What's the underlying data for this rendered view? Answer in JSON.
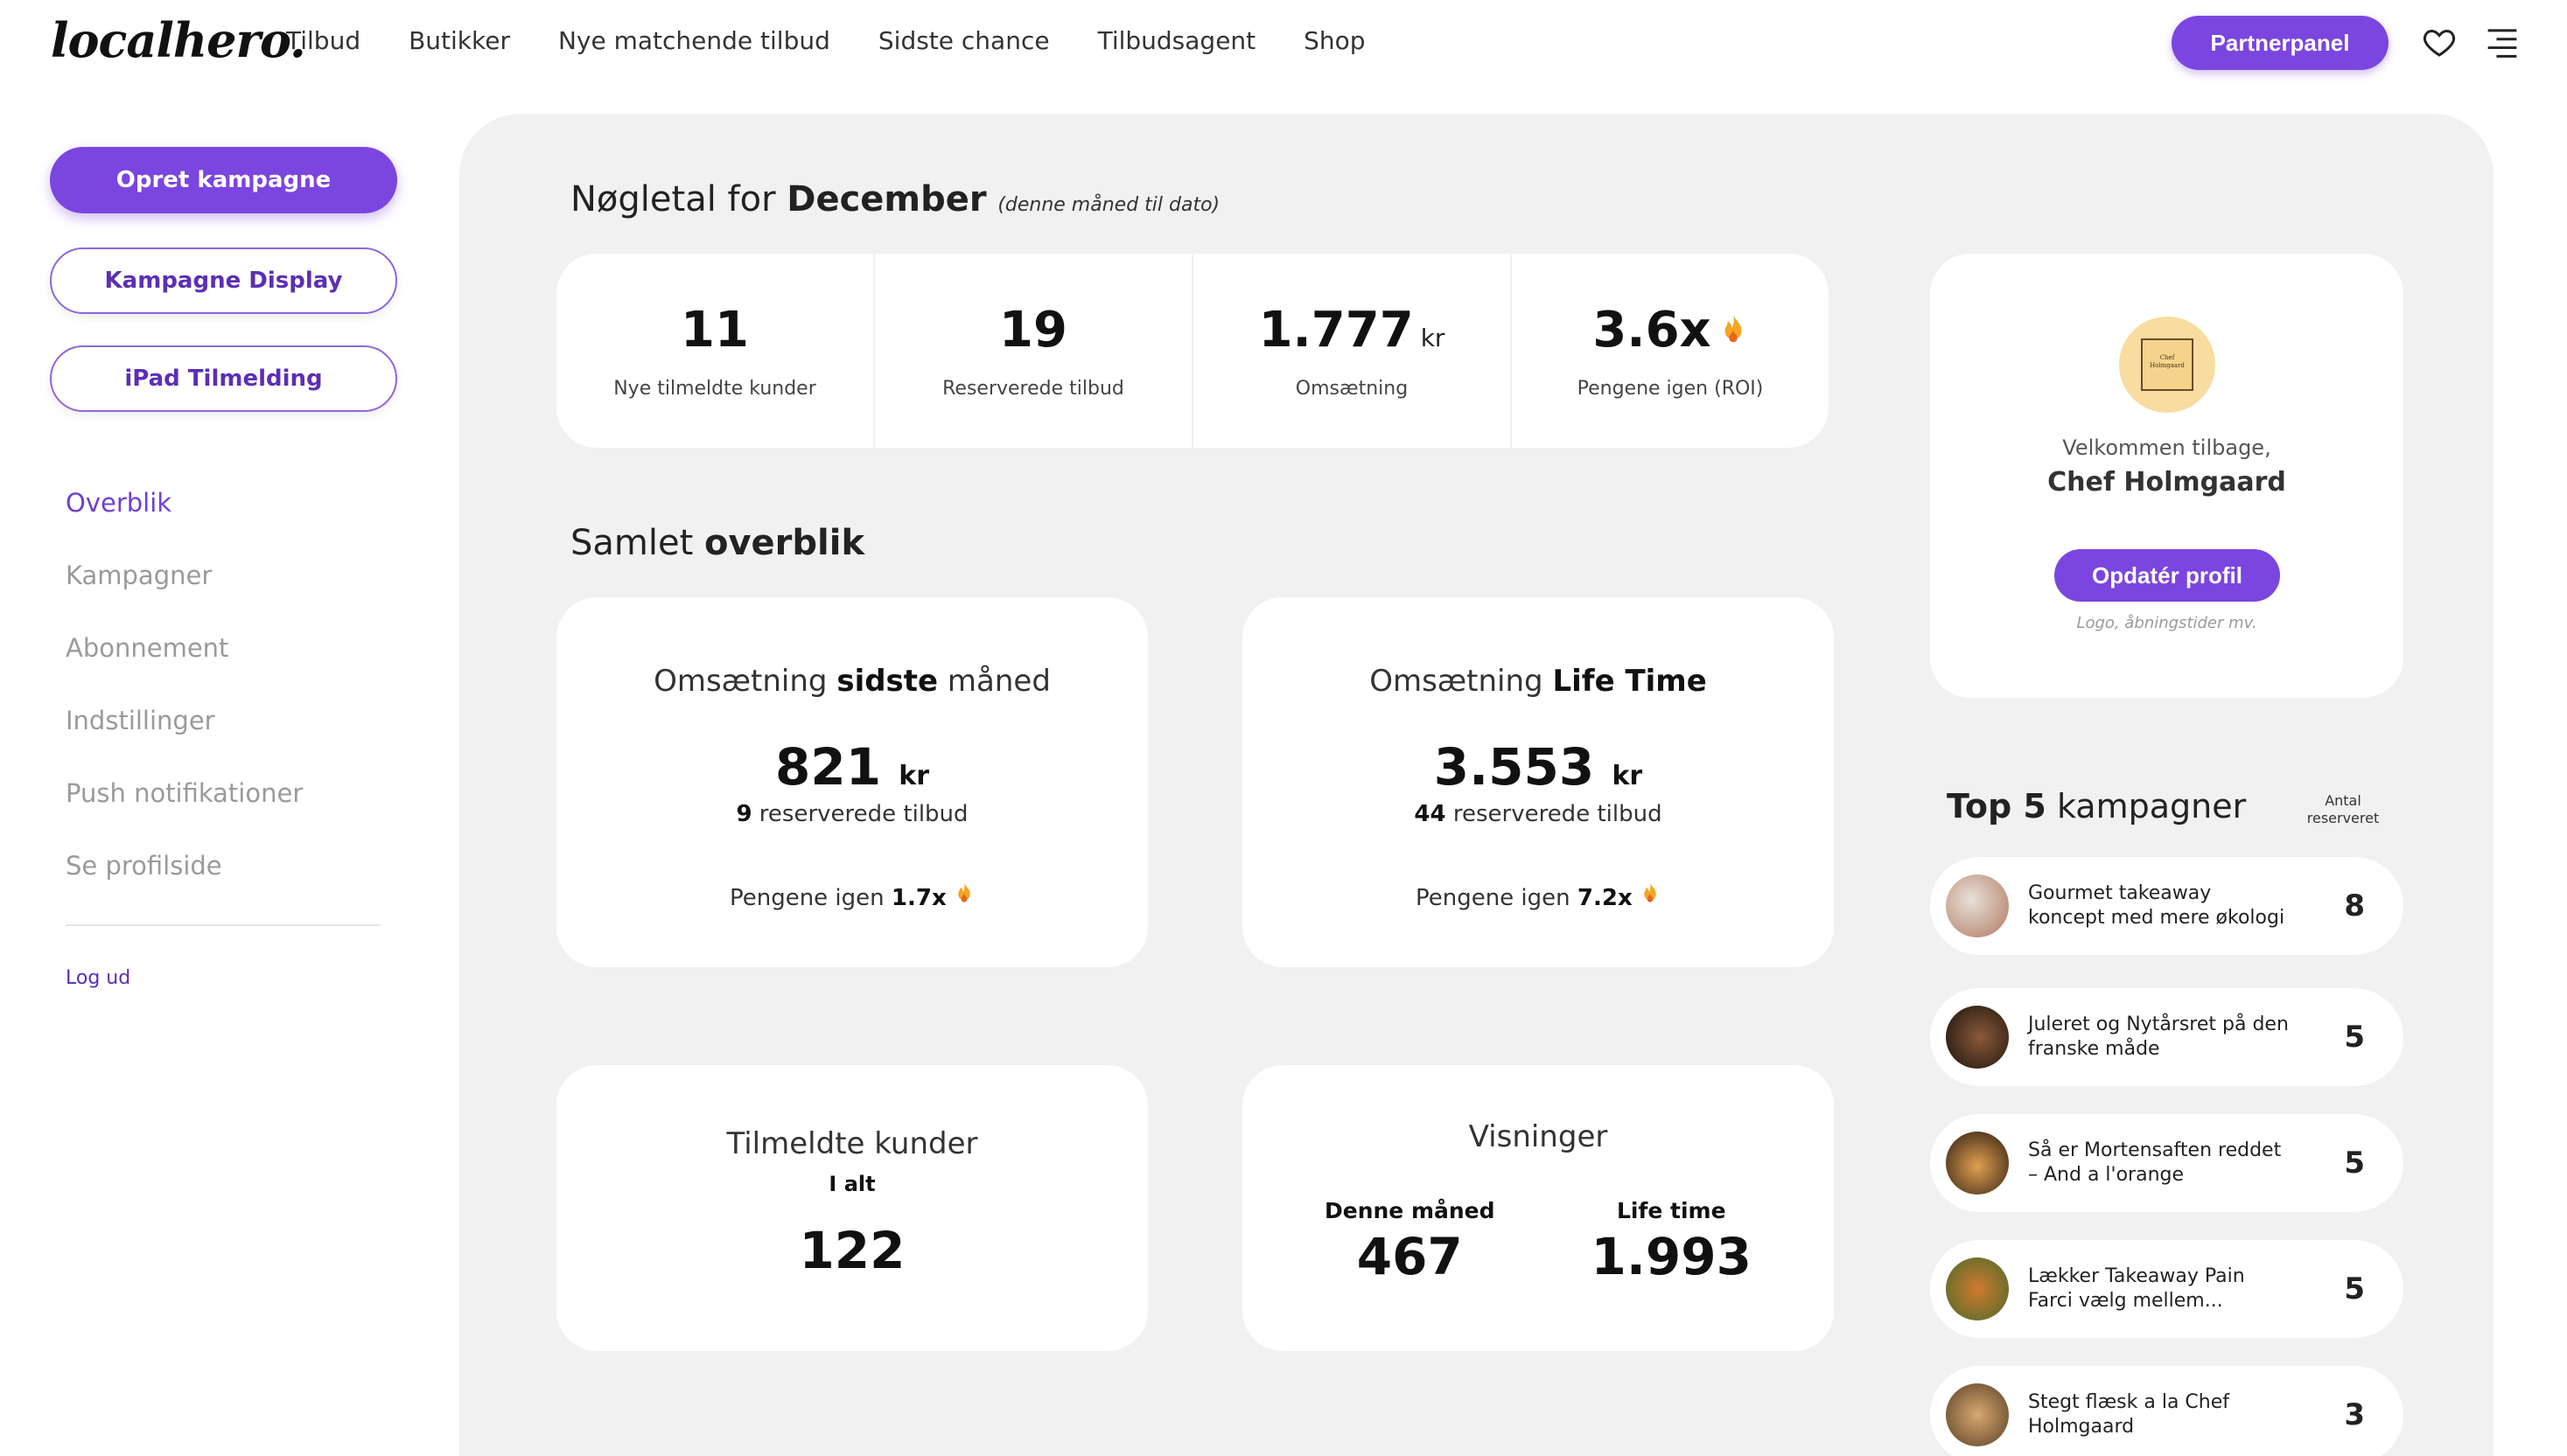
{
  "header": {
    "logo": "localhero.",
    "nav": [
      "Tilbud",
      "Butikker",
      "Nye matchende tilbud",
      "Sidste chance",
      "Tilbudsagent",
      "Shop"
    ],
    "partner_button": "Partnerpanel"
  },
  "sidebar": {
    "create_campaign": "Opret kampagne",
    "campaign_display": "Kampagne Display",
    "ipad_signup": "iPad Tilmelding",
    "menu": [
      "Overblik",
      "Kampagner",
      "Abonnement",
      "Indstillinger",
      "Push notifikationer",
      "Se profilside"
    ],
    "active_item": "Overblik",
    "logout": "Log ud"
  },
  "keyfigures": {
    "title_prefix": "Nøgletal for",
    "month": "December",
    "note": "(denne måned til dato)",
    "items": [
      {
        "value": "11",
        "unit": "",
        "label": "Nye tilmeldte kunder"
      },
      {
        "value": "19",
        "unit": "",
        "label": "Reserverede tilbud"
      },
      {
        "value": "1.777",
        "unit": "kr",
        "label": "Omsætning"
      },
      {
        "value": "3.6x",
        "unit": "",
        "label": "Pengene igen (ROI)"
      }
    ]
  },
  "overview": {
    "title_prefix": "Samlet",
    "title_bold": "overblik",
    "last_month": {
      "title_pre": "Omsætning",
      "title_bold": "sidste",
      "title_post": "måned",
      "amount": "821",
      "unit": "kr",
      "reserved_count": "9",
      "reserved_label": "reserverede tilbud",
      "roi_label": "Pengene igen",
      "roi_value": "1.7x"
    },
    "lifetime": {
      "title_pre": "Omsætning",
      "title_bold": "Life Time",
      "amount": "3.553",
      "unit": "kr",
      "reserved_count": "44",
      "reserved_label": "reserverede tilbud",
      "roi_label": "Pengene igen",
      "roi_value": "7.2x"
    },
    "customers": {
      "title": "Tilmeldte kunder",
      "sub": "I alt",
      "value": "122"
    },
    "views": {
      "title": "Visninger",
      "this_month_label": "Denne måned",
      "this_month_value": "467",
      "lifetime_label": "Life time",
      "lifetime_value": "1.993"
    }
  },
  "profile": {
    "avatar_text": "Chef Holmgaard",
    "welcome": "Velkommen tilbage,",
    "name": "Chef Holmgaard",
    "update_button": "Opdatér profil",
    "hint": "Logo, åbningstider mv."
  },
  "top5": {
    "title_bold": "Top 5",
    "title_rest": "kampagner",
    "column_label": "Antal reserveret",
    "campaigns": [
      {
        "name": "Gourmet takeaway koncept med mere økologi",
        "count": "8",
        "color": "#c9a08a"
      },
      {
        "name": "Juleret og Nytårsret på den franske måde",
        "count": "5",
        "color": "#3a2418"
      },
      {
        "name": "Så er Mortensaften reddet – And a l'orange",
        "count": "5",
        "color": "#7a4a1c"
      },
      {
        "name": "Lækker Takeaway Pain Farci vælg mellem...",
        "count": "5",
        "color": "#6b8a3a"
      },
      {
        "name": "Stegt flæsk a la Chef Holmgaard",
        "count": "3",
        "color": "#8a6a40"
      }
    ]
  },
  "colors": {
    "accent": "#7b45e0",
    "flame": "#f5a623"
  }
}
